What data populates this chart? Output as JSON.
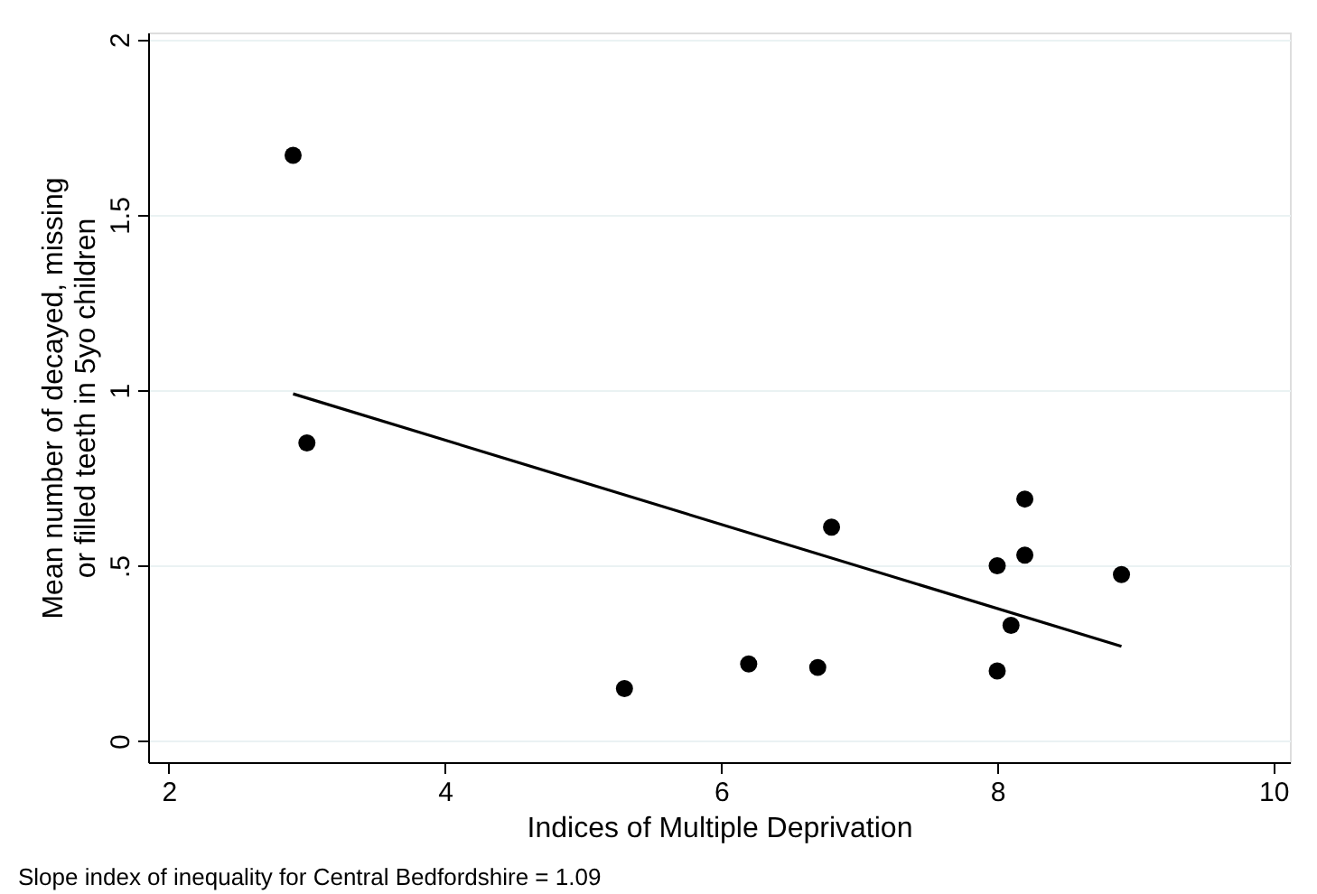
{
  "chart_data": {
    "type": "scatter",
    "xlabel": "Indices of Multiple Deprivation",
    "ylabel": "Mean number of decayed, missing or filled teeth in 5yo children",
    "annotations": [
      "Slope index of inequality for Central Bedfordshire = 1.09"
    ],
    "xlim": [
      1.85,
      10.12
    ],
    "ylim": [
      -0.06,
      2.02
    ],
    "xticks": [
      2,
      4,
      6,
      8,
      10
    ],
    "yticks": [
      0,
      {
        "value": 0.5,
        "label": ".5"
      },
      1,
      1.5,
      2
    ],
    "grid": "y",
    "series": [
      {
        "marker": "circle",
        "color": "#000000",
        "x": [
          2.9,
          3.0,
          5.3,
          6.2,
          6.7,
          6.8,
          8.0,
          8.0,
          8.1,
          8.2,
          8.2,
          8.9
        ],
        "values": [
          1.67,
          0.85,
          0.15,
          0.22,
          0.21,
          0.61,
          0.5,
          0.2,
          0.33,
          0.53,
          0.69,
          0.475
        ]
      },
      {
        "type": "line",
        "color": "#000000",
        "line_style": "solid",
        "x": [
          2.9,
          8.9
        ],
        "values": [
          0.99,
          0.27
        ]
      }
    ]
  }
}
